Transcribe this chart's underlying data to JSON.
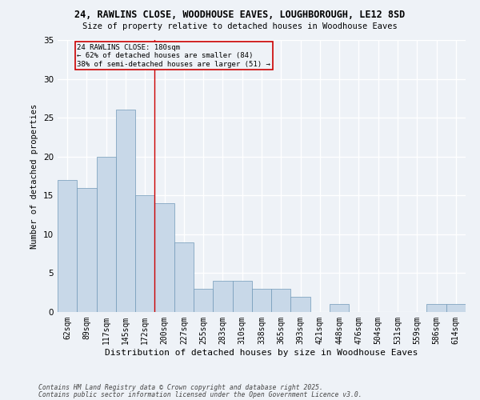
{
  "title1": "24, RAWLINS CLOSE, WOODHOUSE EAVES, LOUGHBOROUGH, LE12 8SD",
  "title2": "Size of property relative to detached houses in Woodhouse Eaves",
  "xlabel": "Distribution of detached houses by size in Woodhouse Eaves",
  "ylabel": "Number of detached properties",
  "bin_labels": [
    "62sqm",
    "89sqm",
    "117sqm",
    "145sqm",
    "172sqm",
    "200sqm",
    "227sqm",
    "255sqm",
    "283sqm",
    "310sqm",
    "338sqm",
    "365sqm",
    "393sqm",
    "421sqm",
    "448sqm",
    "476sqm",
    "504sqm",
    "531sqm",
    "559sqm",
    "586sqm",
    "614sqm"
  ],
  "bin_values": [
    17,
    16,
    20,
    26,
    15,
    14,
    9,
    3,
    4,
    4,
    3,
    3,
    2,
    0,
    1,
    0,
    0,
    0,
    0,
    1,
    1
  ],
  "bar_color": "#c8d8e8",
  "bar_edge_color": "#7098b8",
  "vline_color": "#cc0000",
  "vline_idx": 4,
  "annotation_text": "24 RAWLINS CLOSE: 180sqm\n← 62% of detached houses are smaller (84)\n38% of semi-detached houses are larger (51) →",
  "ylim": [
    0,
    35
  ],
  "yticks": [
    0,
    5,
    10,
    15,
    20,
    25,
    30,
    35
  ],
  "footer1": "Contains HM Land Registry data © Crown copyright and database right 2025.",
  "footer2": "Contains public sector information licensed under the Open Government Licence v3.0.",
  "bg_color": "#eef2f7"
}
